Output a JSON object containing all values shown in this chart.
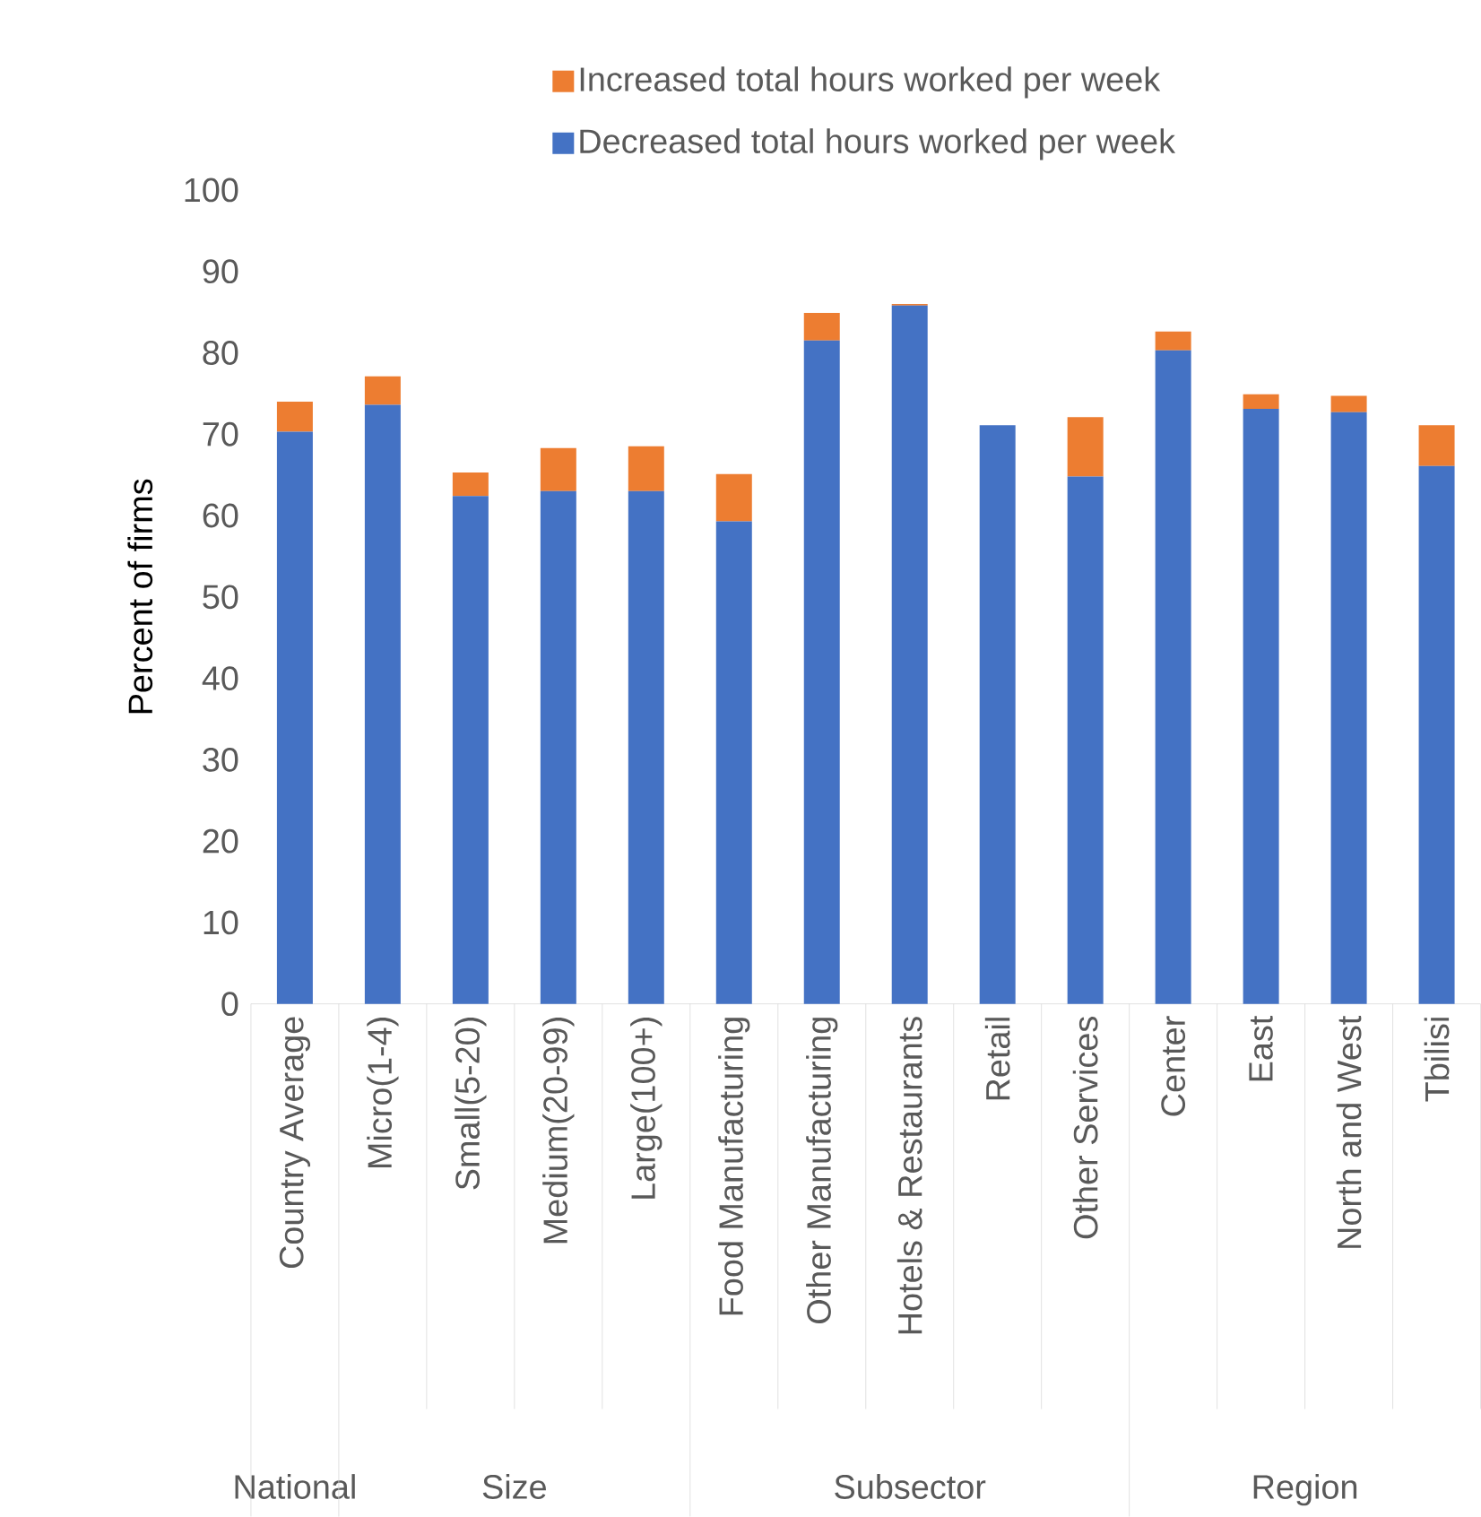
{
  "chart_data": {
    "type": "bar",
    "stacked": true,
    "ylabel": "Percent of firms",
    "categories": [
      "Country Average",
      "Micro(1-4)",
      "Small(5-20)",
      "Medium(20-99)",
      "Large(100+)",
      "Food Manufacturing",
      "Other Manufacturing",
      "Hotels & Restaurants",
      "Retail",
      "Other Services",
      "Center",
      "East",
      "North and West",
      "Tbilisi"
    ],
    "series": [
      {
        "name": "Decreased total hours worked per week",
        "color": "#4472c4",
        "values": [
          70.3,
          73.6,
          62.4,
          63.0,
          63.0,
          59.3,
          81.5,
          85.8,
          71.1,
          64.8,
          80.3,
          73.1,
          72.7,
          66.1
        ]
      },
      {
        "name": "Increased total hours worked per week",
        "color": "#ed7d31",
        "values": [
          3.7,
          3.5,
          2.9,
          5.3,
          5.5,
          5.8,
          3.4,
          0.2,
          0.0,
          7.3,
          2.3,
          1.8,
          2.0,
          5.0
        ]
      }
    ],
    "ylim": [
      0,
      100
    ],
    "yticks": [
      0,
      10,
      20,
      30,
      40,
      50,
      60,
      70,
      80,
      90,
      100
    ],
    "legend": "top",
    "grid": false,
    "annotations": [
      "National",
      "Size",
      "Subsector",
      "Region"
    ]
  }
}
